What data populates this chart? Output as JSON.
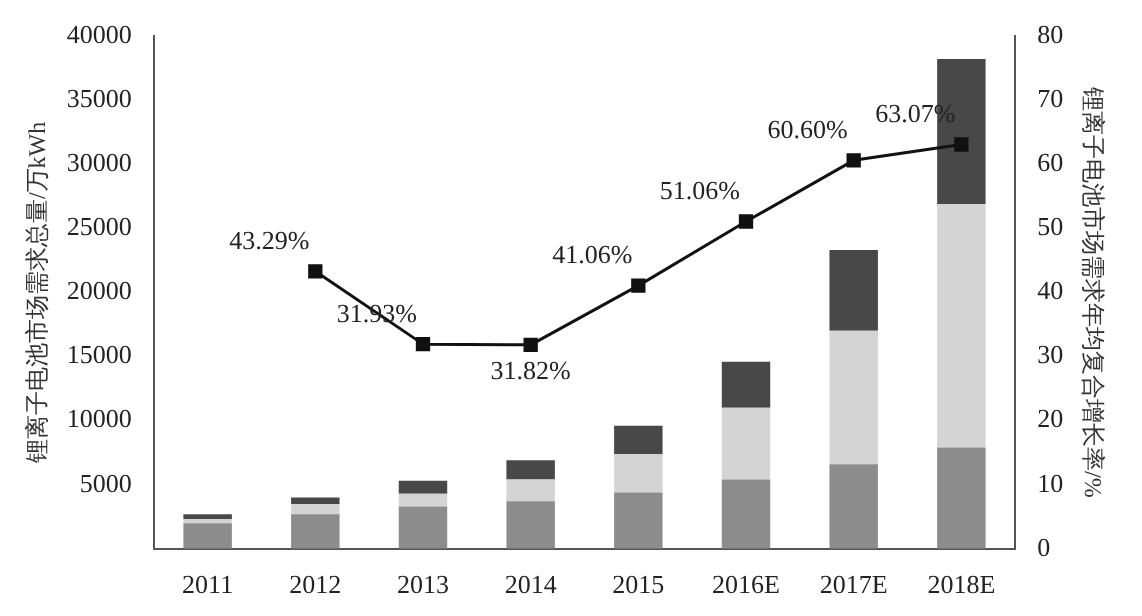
{
  "chart_data": {
    "type": "bar",
    "stacked": true,
    "legend": false,
    "grid": false,
    "marker": "square",
    "ylabel": "锂离子电池市场需求总量/万kWh",
    "y2label": "锂离子电池市场需求年均复合增长率/%",
    "categories": [
      "2011",
      "2012",
      "2013",
      "2014",
      "2015",
      "2016E",
      "2017E",
      "2018E"
    ],
    "ylim": [
      0,
      40000
    ],
    "yticks": [
      {
        "value": 0,
        "label": null
      },
      5000,
      10000,
      15000,
      20000,
      25000,
      30000,
      35000,
      40000
    ],
    "y2lim": [
      0,
      80
    ],
    "y2ticks": [
      0,
      10,
      20,
      30,
      40,
      50,
      60,
      70,
      80
    ],
    "series": [
      {
        "color": "#8c8c8c",
        "values": [
          2000,
          2700,
          3300,
          3700,
          4400,
          5400,
          6600,
          7900
        ]
      },
      {
        "color": "#d4d4d4",
        "values": [
          300,
          800,
          1000,
          1700,
          3000,
          5600,
          10400,
          19000
        ]
      },
      {
        "color": "#484848",
        "values": [
          400,
          500,
          1000,
          1500,
          2200,
          3600,
          6300,
          11300
        ]
      },
      {
        "type": "line",
        "axis": "y2",
        "color": "#111111",
        "values": [
          null,
          43.29,
          31.93,
          31.82,
          41.06,
          51.06,
          60.6,
          63.07
        ],
        "value_labels": [
          null,
          "43.29%",
          "31.93%",
          "31.82%",
          "41.06%",
          "51.06%",
          "60.60%",
          "63.07%"
        ]
      }
    ]
  }
}
